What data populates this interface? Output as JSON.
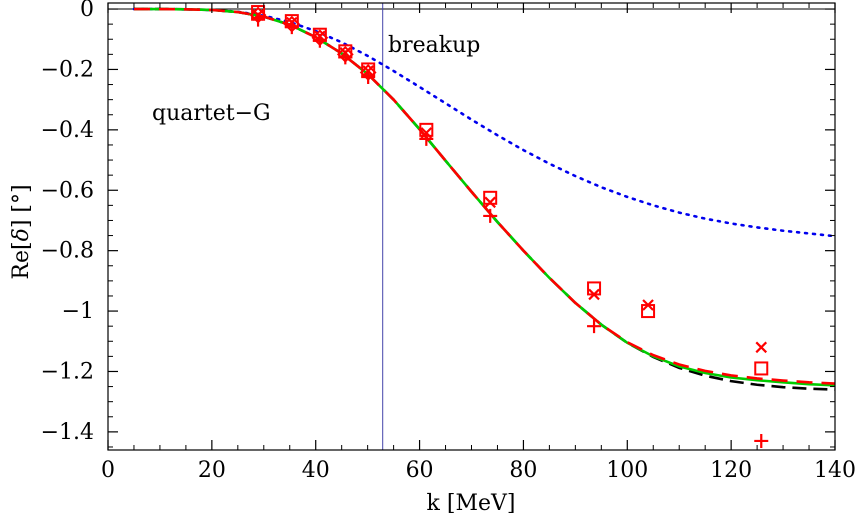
{
  "chart_data": {
    "type": "line",
    "title": "",
    "xlabel": "k [MeV]",
    "ylabel_prefix": "Re[",
    "ylabel_symbol": "δ",
    "ylabel_suffix": "] [°]",
    "xlim": [
      0,
      140
    ],
    "ylim": [
      -1.46,
      0.02
    ],
    "xticks": [
      0,
      20,
      40,
      60,
      80,
      100,
      120,
      140
    ],
    "yticks": [
      0,
      -0.2,
      -0.4,
      -0.6,
      -0.8,
      -1,
      -1.2,
      -1.4
    ],
    "ytick_labels": [
      "0",
      "−0.2",
      "−0.4",
      "−0.6",
      "−0.8",
      "−1",
      "−1.2",
      "−1.4"
    ],
    "annotations": {
      "label": "quartet−G",
      "breakup_label": "breakup"
    },
    "breakup_k": 52.9,
    "colors": {
      "red": "#ff0000",
      "green": "#00cc00",
      "black": "#000000",
      "blue": "#0000ee",
      "vline": "#4444aa"
    },
    "curve_x": [
      5,
      10,
      15,
      20,
      25,
      30,
      35,
      40,
      45,
      50,
      55,
      60,
      65,
      70,
      75,
      80,
      85,
      90,
      95,
      100,
      105,
      110,
      115,
      120,
      125,
      130,
      135,
      140
    ],
    "series": [
      {
        "name": "dotted",
        "style": "dotted",
        "color": "#0000ee",
        "values": [
          0,
          0,
          -0.001,
          -0.003,
          -0.009,
          -0.022,
          -0.043,
          -0.073,
          -0.11,
          -0.155,
          -0.205,
          -0.258,
          -0.312,
          -0.366,
          -0.418,
          -0.467,
          -0.512,
          -0.553,
          -0.59,
          -0.622,
          -0.65,
          -0.674,
          -0.694,
          -0.71,
          -0.723,
          -0.734,
          -0.743,
          -0.752
        ]
      },
      {
        "name": "black-dashed",
        "style": "dashed-black",
        "color": "#000000",
        "values": [
          0,
          0,
          -0.001,
          -0.003,
          -0.01,
          -0.025,
          -0.052,
          -0.093,
          -0.147,
          -0.215,
          -0.3,
          -0.398,
          -0.502,
          -0.605,
          -0.705,
          -0.8,
          -0.89,
          -0.973,
          -1.045,
          -1.105,
          -1.152,
          -1.188,
          -1.214,
          -1.232,
          -1.244,
          -1.252,
          -1.257,
          -1.26
        ]
      },
      {
        "name": "green",
        "style": "solid",
        "color": "#00cc00",
        "values": [
          0,
          0,
          -0.001,
          -0.003,
          -0.01,
          -0.025,
          -0.052,
          -0.093,
          -0.147,
          -0.215,
          -0.3,
          -0.398,
          -0.502,
          -0.605,
          -0.705,
          -0.8,
          -0.89,
          -0.973,
          -1.045,
          -1.105,
          -1.15,
          -1.183,
          -1.205,
          -1.22,
          -1.229,
          -1.236,
          -1.242,
          -1.246
        ]
      },
      {
        "name": "red-dashed",
        "style": "dashed-red",
        "color": "#ff0000",
        "values": [
          0,
          0,
          -0.001,
          -0.003,
          -0.01,
          -0.025,
          -0.052,
          -0.093,
          -0.147,
          -0.215,
          -0.3,
          -0.398,
          -0.502,
          -0.605,
          -0.705,
          -0.8,
          -0.89,
          -0.973,
          -1.045,
          -1.103,
          -1.146,
          -1.177,
          -1.198,
          -1.213,
          -1.223,
          -1.23,
          -1.236,
          -1.24
        ]
      }
    ],
    "markers": {
      "plus": {
        "x": [
          28.9,
          35.4,
          40.8,
          45.7,
          50.1,
          61.3,
          73.6,
          93.6,
          125.8
        ],
        "y": [
          -0.035,
          -0.06,
          -0.105,
          -0.16,
          -0.225,
          -0.43,
          -0.685,
          -1.05,
          -1.43
        ]
      },
      "cross": {
        "x": [
          28.9,
          35.4,
          40.8,
          45.7,
          50.1,
          61.3,
          73.6,
          93.6,
          104.0,
          125.8
        ],
        "y": [
          -0.02,
          -0.045,
          -0.09,
          -0.145,
          -0.205,
          -0.41,
          -0.64,
          -0.945,
          -0.98,
          -1.12
        ]
      },
      "square": {
        "x": [
          28.9,
          35.4,
          40.8,
          45.7,
          50.1,
          61.3,
          73.6,
          93.6,
          104.0,
          125.8
        ],
        "y": [
          -0.01,
          -0.04,
          -0.085,
          -0.14,
          -0.2,
          -0.4,
          -0.625,
          -0.925,
          -1.0,
          -1.19
        ]
      },
      "diamond": {
        "x": [
          28.9,
          35.4,
          40.8,
          45.7,
          50.1
        ],
        "y": [
          -0.02,
          -0.05,
          -0.095,
          -0.15,
          -0.21
        ]
      }
    }
  }
}
